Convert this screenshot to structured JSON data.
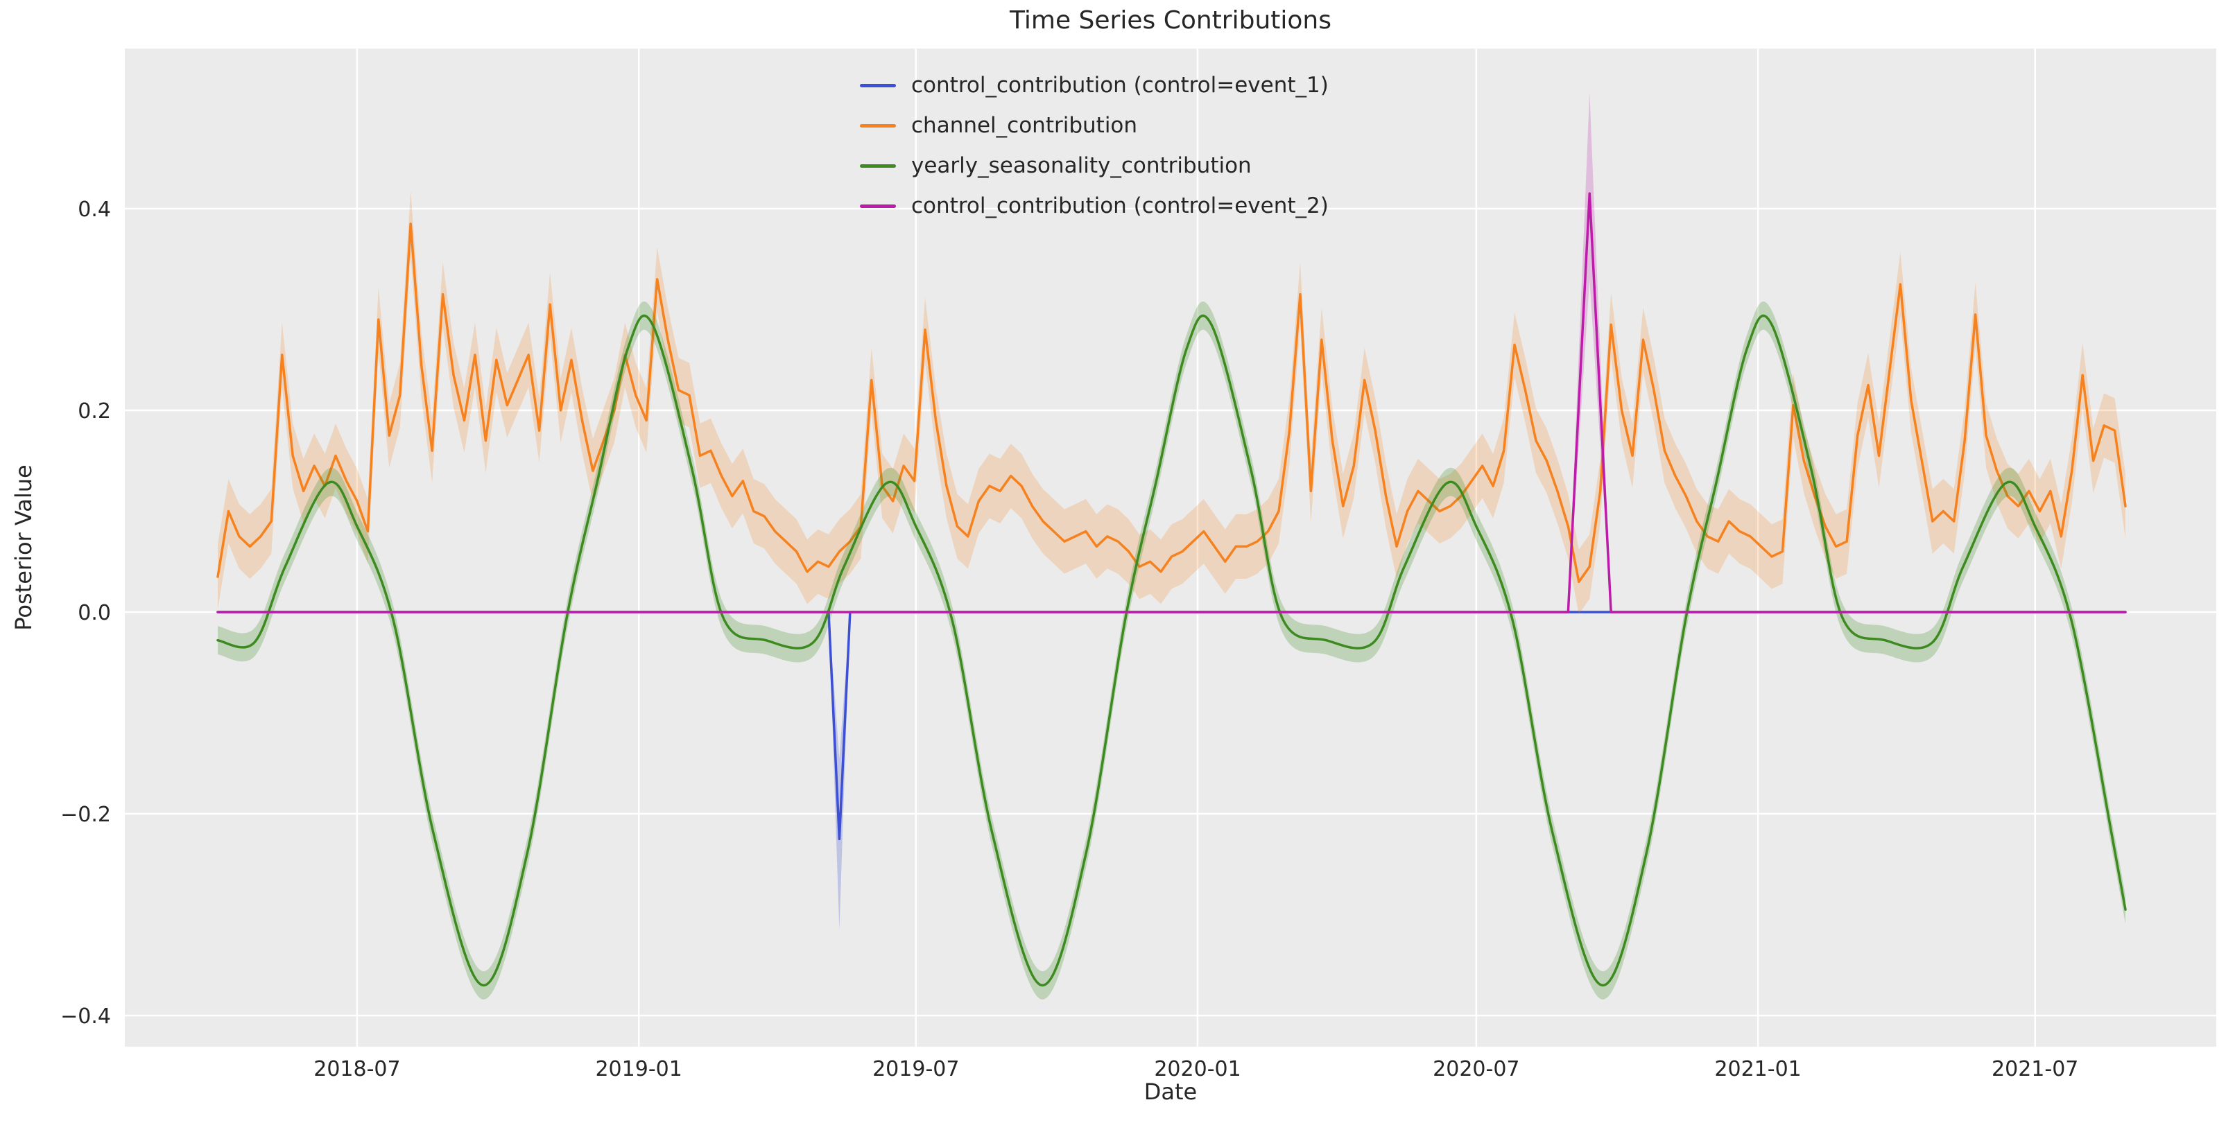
{
  "chart_data": {
    "type": "line",
    "title": "Time Series Contributions",
    "xlabel": "Date",
    "ylabel": "Posterior Value",
    "grid": true,
    "legend_position": "upper center",
    "plot_background": "#ebebeb",
    "gridline_color": "#ffffff",
    "text_color": "#262626",
    "x_range": [
      "2018-04-01",
      "2021-08-29"
    ],
    "ylim": [
      -0.43,
      0.56
    ],
    "x_ticks": [
      "2018-07-01",
      "2019-01-01",
      "2019-07-01",
      "2020-01-01",
      "2020-07-01",
      "2021-01-01",
      "2021-07-01"
    ],
    "x_tick_labels": [
      "2018-07",
      "2019-01",
      "2019-07",
      "2020-01",
      "2020-07",
      "2021-01",
      "2021-07"
    ],
    "y_ticks": [
      -0.4,
      -0.2,
      0.0,
      0.2,
      0.4
    ],
    "y_tick_labels": [
      "−0.4",
      "−0.2",
      "0.0",
      "0.2",
      "0.4"
    ],
    "series": [
      {
        "name": "control_contribution (control=event_1)",
        "color": "#3d50d4",
        "band_opacity": 0.25,
        "smooth": false,
        "band_points": [
          [
            "2019-05-05",
            0,
            0
          ],
          [
            "2019-05-12",
            -0.315,
            -0.145
          ],
          [
            "2019-05-19",
            0,
            0
          ]
        ],
        "points": [
          [
            "2018-04-01",
            0
          ],
          [
            "2019-05-05",
            0
          ],
          [
            "2019-05-12",
            -0.225
          ],
          [
            "2019-05-19",
            0
          ],
          [
            "2021-08-29",
            0
          ]
        ]
      },
      {
        "name": "channel_contribution",
        "color": "#f6821f",
        "band_opacity": 0.22,
        "band_halfwidth": 0.032,
        "smooth": false,
        "points": [
          [
            "2018-04-01",
            0.035
          ],
          [
            "2018-04-08",
            0.1
          ],
          [
            "2018-04-15",
            0.075
          ],
          [
            "2018-04-22",
            0.065
          ],
          [
            "2018-04-29",
            0.075
          ],
          [
            "2018-05-06",
            0.09
          ],
          [
            "2018-05-13",
            0.255
          ],
          [
            "2018-05-20",
            0.155
          ],
          [
            "2018-05-27",
            0.12
          ],
          [
            "2018-06-03",
            0.145
          ],
          [
            "2018-06-10",
            0.125
          ],
          [
            "2018-06-17",
            0.155
          ],
          [
            "2018-06-24",
            0.13
          ],
          [
            "2018-07-01",
            0.11
          ],
          [
            "2018-07-08",
            0.08
          ],
          [
            "2018-07-15",
            0.29
          ],
          [
            "2018-07-22",
            0.175
          ],
          [
            "2018-07-29",
            0.215
          ],
          [
            "2018-08-05",
            0.385
          ],
          [
            "2018-08-12",
            0.245
          ],
          [
            "2018-08-19",
            0.16
          ],
          [
            "2018-08-26",
            0.315
          ],
          [
            "2018-09-02",
            0.235
          ],
          [
            "2018-09-09",
            0.19
          ],
          [
            "2018-09-16",
            0.255
          ],
          [
            "2018-09-23",
            0.17
          ],
          [
            "2018-09-30",
            0.25
          ],
          [
            "2018-10-07",
            0.205
          ],
          [
            "2018-10-14",
            0.23
          ],
          [
            "2018-10-21",
            0.255
          ],
          [
            "2018-10-28",
            0.18
          ],
          [
            "2018-11-04",
            0.305
          ],
          [
            "2018-11-11",
            0.2
          ],
          [
            "2018-11-18",
            0.25
          ],
          [
            "2018-11-25",
            0.19
          ],
          [
            "2018-12-02",
            0.14
          ],
          [
            "2018-12-09",
            0.17
          ],
          [
            "2018-12-16",
            0.2
          ],
          [
            "2018-12-23",
            0.255
          ],
          [
            "2018-12-30",
            0.215
          ],
          [
            "2019-01-06",
            0.19
          ],
          [
            "2019-01-13",
            0.33
          ],
          [
            "2019-01-20",
            0.27
          ],
          [
            "2019-01-27",
            0.22
          ],
          [
            "2019-02-03",
            0.215
          ],
          [
            "2019-02-10",
            0.155
          ],
          [
            "2019-02-17",
            0.16
          ],
          [
            "2019-02-24",
            0.135
          ],
          [
            "2019-03-03",
            0.115
          ],
          [
            "2019-03-10",
            0.13
          ],
          [
            "2019-03-17",
            0.1
          ],
          [
            "2019-03-24",
            0.095
          ],
          [
            "2019-03-31",
            0.08
          ],
          [
            "2019-04-07",
            0.07
          ],
          [
            "2019-04-14",
            0.06
          ],
          [
            "2019-04-21",
            0.04
          ],
          [
            "2019-04-28",
            0.05
          ],
          [
            "2019-05-05",
            0.045
          ],
          [
            "2019-05-12",
            0.06
          ],
          [
            "2019-05-19",
            0.07
          ],
          [
            "2019-05-26",
            0.085
          ],
          [
            "2019-06-02",
            0.23
          ],
          [
            "2019-06-09",
            0.125
          ],
          [
            "2019-06-16",
            0.11
          ],
          [
            "2019-06-23",
            0.145
          ],
          [
            "2019-06-30",
            0.13
          ],
          [
            "2019-07-07",
            0.28
          ],
          [
            "2019-07-14",
            0.19
          ],
          [
            "2019-07-21",
            0.125
          ],
          [
            "2019-07-28",
            0.085
          ],
          [
            "2019-08-04",
            0.075
          ],
          [
            "2019-08-11",
            0.11
          ],
          [
            "2019-08-18",
            0.125
          ],
          [
            "2019-08-25",
            0.12
          ],
          [
            "2019-09-01",
            0.135
          ],
          [
            "2019-09-08",
            0.125
          ],
          [
            "2019-09-15",
            0.105
          ],
          [
            "2019-09-22",
            0.09
          ],
          [
            "2019-09-29",
            0.08
          ],
          [
            "2019-10-06",
            0.07
          ],
          [
            "2019-10-13",
            0.075
          ],
          [
            "2019-10-20",
            0.08
          ],
          [
            "2019-10-27",
            0.065
          ],
          [
            "2019-11-03",
            0.075
          ],
          [
            "2019-11-10",
            0.07
          ],
          [
            "2019-11-17",
            0.06
          ],
          [
            "2019-11-24",
            0.045
          ],
          [
            "2019-12-01",
            0.05
          ],
          [
            "2019-12-08",
            0.04
          ],
          [
            "2019-12-15",
            0.055
          ],
          [
            "2019-12-22",
            0.06
          ],
          [
            "2019-12-29",
            0.07
          ],
          [
            "2020-01-05",
            0.08
          ],
          [
            "2020-01-12",
            0.065
          ],
          [
            "2020-01-19",
            0.05
          ],
          [
            "2020-01-26",
            0.065
          ],
          [
            "2020-02-02",
            0.065
          ],
          [
            "2020-02-09",
            0.07
          ],
          [
            "2020-02-16",
            0.08
          ],
          [
            "2020-02-23",
            0.1
          ],
          [
            "2020-03-01",
            0.18
          ],
          [
            "2020-03-08",
            0.315
          ],
          [
            "2020-03-15",
            0.12
          ],
          [
            "2020-03-22",
            0.27
          ],
          [
            "2020-03-29",
            0.17
          ],
          [
            "2020-04-05",
            0.105
          ],
          [
            "2020-04-12",
            0.145
          ],
          [
            "2020-04-19",
            0.23
          ],
          [
            "2020-04-26",
            0.18
          ],
          [
            "2020-05-03",
            0.115
          ],
          [
            "2020-05-10",
            0.065
          ],
          [
            "2020-05-17",
            0.1
          ],
          [
            "2020-05-24",
            0.12
          ],
          [
            "2020-05-31",
            0.11
          ],
          [
            "2020-06-07",
            0.1
          ],
          [
            "2020-06-14",
            0.105
          ],
          [
            "2020-06-21",
            0.115
          ],
          [
            "2020-06-28",
            0.13
          ],
          [
            "2020-07-05",
            0.145
          ],
          [
            "2020-07-12",
            0.125
          ],
          [
            "2020-07-19",
            0.16
          ],
          [
            "2020-07-26",
            0.265
          ],
          [
            "2020-08-02",
            0.22
          ],
          [
            "2020-08-09",
            0.17
          ],
          [
            "2020-08-16",
            0.15
          ],
          [
            "2020-08-23",
            0.12
          ],
          [
            "2020-08-30",
            0.085
          ],
          [
            "2020-09-06",
            0.03
          ],
          [
            "2020-09-13",
            0.045
          ],
          [
            "2020-09-20",
            0.12
          ],
          [
            "2020-09-27",
            0.285
          ],
          [
            "2020-10-04",
            0.2
          ],
          [
            "2020-10-11",
            0.155
          ],
          [
            "2020-10-18",
            0.27
          ],
          [
            "2020-10-25",
            0.22
          ],
          [
            "2020-11-01",
            0.16
          ],
          [
            "2020-11-08",
            0.135
          ],
          [
            "2020-11-15",
            0.115
          ],
          [
            "2020-11-22",
            0.09
          ],
          [
            "2020-11-29",
            0.075
          ],
          [
            "2020-12-06",
            0.07
          ],
          [
            "2020-12-13",
            0.09
          ],
          [
            "2020-12-20",
            0.08
          ],
          [
            "2020-12-27",
            0.075
          ],
          [
            "2021-01-03",
            0.065
          ],
          [
            "2021-01-10",
            0.055
          ],
          [
            "2021-01-17",
            0.06
          ],
          [
            "2021-01-24",
            0.205
          ],
          [
            "2021-01-31",
            0.15
          ],
          [
            "2021-02-07",
            0.115
          ],
          [
            "2021-02-14",
            0.085
          ],
          [
            "2021-02-21",
            0.065
          ],
          [
            "2021-02-28",
            0.07
          ],
          [
            "2021-03-07",
            0.175
          ],
          [
            "2021-03-14",
            0.225
          ],
          [
            "2021-03-21",
            0.155
          ],
          [
            "2021-03-28",
            0.24
          ],
          [
            "2021-04-04",
            0.325
          ],
          [
            "2021-04-11",
            0.21
          ],
          [
            "2021-04-18",
            0.15
          ],
          [
            "2021-04-25",
            0.09
          ],
          [
            "2021-05-02",
            0.1
          ],
          [
            "2021-05-09",
            0.09
          ],
          [
            "2021-05-16",
            0.17
          ],
          [
            "2021-05-23",
            0.295
          ],
          [
            "2021-05-30",
            0.175
          ],
          [
            "2021-06-06",
            0.14
          ],
          [
            "2021-06-13",
            0.115
          ],
          [
            "2021-06-20",
            0.105
          ],
          [
            "2021-06-27",
            0.12
          ],
          [
            "2021-07-04",
            0.1
          ],
          [
            "2021-07-11",
            0.12
          ],
          [
            "2021-07-18",
            0.075
          ],
          [
            "2021-07-25",
            0.14
          ],
          [
            "2021-08-01",
            0.235
          ],
          [
            "2021-08-08",
            0.15
          ],
          [
            "2021-08-15",
            0.185
          ],
          [
            "2021-08-22",
            0.18
          ],
          [
            "2021-08-29",
            0.105
          ]
        ]
      },
      {
        "name": "yearly_seasonality_contribution",
        "color": "#3d8b20",
        "band_opacity": 0.25,
        "band_halfwidth": 0.014,
        "smooth": true,
        "points": [
          [
            "2018-04-01",
            -0.028
          ],
          [
            "2018-04-25",
            -0.03
          ],
          [
            "2018-05-15",
            0.045
          ],
          [
            "2018-06-12",
            0.128
          ],
          [
            "2018-07-01",
            0.085
          ],
          [
            "2018-07-25",
            -0.01
          ],
          [
            "2018-08-20",
            -0.22
          ],
          [
            "2018-09-21",
            -0.37
          ],
          [
            "2018-10-20",
            -0.24
          ],
          [
            "2018-11-15",
            -0.005
          ],
          [
            "2018-12-05",
            0.13
          ],
          [
            "2018-12-25",
            0.262
          ],
          [
            "2019-01-10",
            0.285
          ],
          [
            "2019-02-05",
            0.14
          ],
          [
            "2019-02-25",
            -0.005
          ],
          [
            "2019-03-25",
            -0.028
          ],
          [
            "2019-04-25",
            -0.03
          ],
          [
            "2019-05-15",
            0.045
          ],
          [
            "2019-06-12",
            0.128
          ],
          [
            "2019-07-01",
            0.085
          ],
          [
            "2019-07-25",
            -0.01
          ],
          [
            "2019-08-20",
            -0.22
          ],
          [
            "2019-09-21",
            -0.37
          ],
          [
            "2019-10-20",
            -0.24
          ],
          [
            "2019-11-15",
            -0.005
          ],
          [
            "2019-12-05",
            0.13
          ],
          [
            "2019-12-25",
            0.262
          ],
          [
            "2020-01-10",
            0.285
          ],
          [
            "2020-02-05",
            0.14
          ],
          [
            "2020-02-25",
            -0.005
          ],
          [
            "2020-03-25",
            -0.028
          ],
          [
            "2020-04-25",
            -0.03
          ],
          [
            "2020-05-15",
            0.045
          ],
          [
            "2020-06-12",
            0.128
          ],
          [
            "2020-07-01",
            0.085
          ],
          [
            "2020-07-25",
            -0.01
          ],
          [
            "2020-08-20",
            -0.22
          ],
          [
            "2020-09-21",
            -0.37
          ],
          [
            "2020-10-20",
            -0.24
          ],
          [
            "2020-11-15",
            -0.005
          ],
          [
            "2020-12-05",
            0.13
          ],
          [
            "2020-12-25",
            0.262
          ],
          [
            "2021-01-10",
            0.285
          ],
          [
            "2021-02-05",
            0.14
          ],
          [
            "2021-02-25",
            -0.005
          ],
          [
            "2021-03-25",
            -0.028
          ],
          [
            "2021-04-25",
            -0.03
          ],
          [
            "2021-05-15",
            0.045
          ],
          [
            "2021-06-12",
            0.128
          ],
          [
            "2021-07-01",
            0.085
          ],
          [
            "2021-07-25",
            -0.01
          ],
          [
            "2021-08-20",
            -0.22
          ],
          [
            "2021-08-29",
            -0.295
          ]
        ]
      },
      {
        "name": "control_contribution (control=event_2)",
        "color": "#bc1ca8",
        "band_opacity": 0.22,
        "smooth": false,
        "band_points": [
          [
            "2020-08-30",
            0,
            0
          ],
          [
            "2020-09-13",
            0.33,
            0.515
          ],
          [
            "2020-09-27",
            0,
            0
          ]
        ],
        "points": [
          [
            "2018-04-01",
            0
          ],
          [
            "2020-08-30",
            0
          ],
          [
            "2020-09-13",
            0.415
          ],
          [
            "2020-09-27",
            0
          ],
          [
            "2021-08-29",
            0
          ]
        ]
      }
    ]
  }
}
